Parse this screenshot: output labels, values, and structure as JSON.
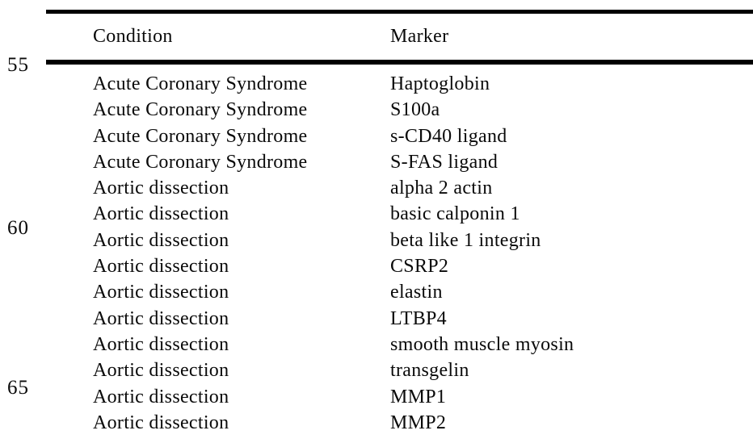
{
  "page": {
    "background": "#ffffff",
    "ink": "#0a0a0a",
    "rule_color": "#000000"
  },
  "margin_line_numbers": [
    {
      "label": "55"
    },
    {
      "label": "60"
    },
    {
      "label": "65"
    }
  ],
  "table": {
    "column_headers": {
      "condition": "Condition",
      "marker": "Marker"
    },
    "rows": [
      {
        "condition": "Acute Coronary Syndrome",
        "marker": "Haptoglobin"
      },
      {
        "condition": "Acute Coronary Syndrome",
        "marker": "S100a"
      },
      {
        "condition": "Acute Coronary Syndrome",
        "marker": "s-CD40 ligand"
      },
      {
        "condition": "Acute Coronary Syndrome",
        "marker": "S-FAS ligand"
      },
      {
        "condition": "Aortic dissection",
        "marker": "alpha 2 actin"
      },
      {
        "condition": "Aortic dissection",
        "marker": "basic calponin 1"
      },
      {
        "condition": "Aortic dissection",
        "marker": "beta like 1 integrin"
      },
      {
        "condition": "Aortic dissection",
        "marker": "CSRP2"
      },
      {
        "condition": "Aortic dissection",
        "marker": "elastin"
      },
      {
        "condition": "Aortic dissection",
        "marker": "LTBP4"
      },
      {
        "condition": "Aortic dissection",
        "marker": "smooth muscle myosin"
      },
      {
        "condition": "Aortic dissection",
        "marker": "transgelin"
      },
      {
        "condition": "Aortic dissection",
        "marker": "MMP1"
      },
      {
        "condition": "Aortic dissection",
        "marker": "MMP2"
      }
    ]
  }
}
